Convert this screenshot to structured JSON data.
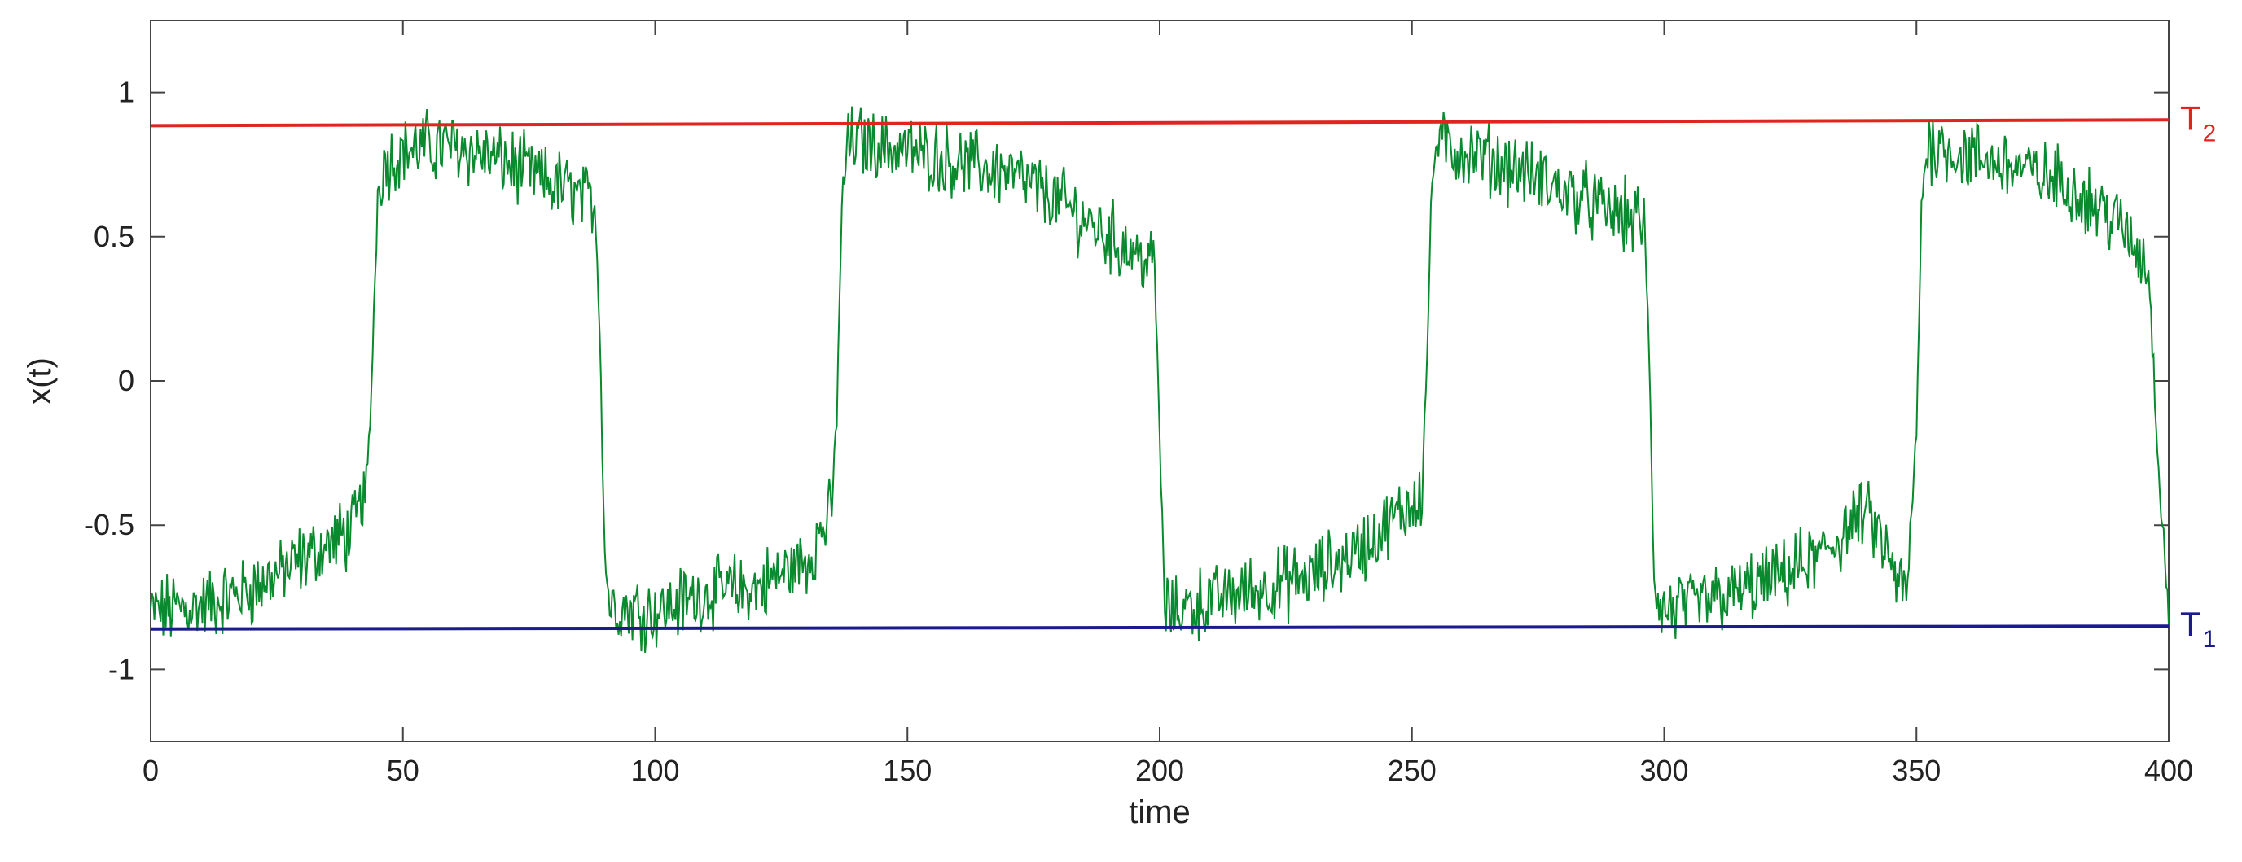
{
  "chart_data": {
    "type": "line",
    "xlabel": "time",
    "ylabel": "x(t)",
    "xlim": [
      0,
      400
    ],
    "ylim": [
      -1.25,
      1.25
    ],
    "xticks": [
      0,
      50,
      100,
      150,
      200,
      250,
      300,
      350,
      400
    ],
    "yticks": [
      1,
      0.5,
      0,
      -0.5,
      -1
    ],
    "ytick_labels": [
      "1",
      "0.5",
      "0",
      "-0.5",
      "-1"
    ],
    "grid": false,
    "series": [
      {
        "color": "#0a8a2e",
        "x": [
          0,
          10,
          20,
          30,
          40,
          43,
          44,
          45,
          46,
          50,
          60,
          70,
          80,
          88,
          89,
          90,
          91,
          100,
          110,
          120,
          130,
          135,
          136,
          137,
          138,
          140,
          150,
          160,
          170,
          180,
          190,
          199,
          200,
          201,
          202,
          210,
          220,
          230,
          240,
          250,
          252,
          253,
          254,
          255,
          260,
          270,
          280,
          290,
          296,
          297,
          298,
          299,
          310,
          320,
          330,
          340,
          348,
          350,
          351,
          352,
          353,
          360,
          370,
          380,
          390,
          396,
          398,
          400
        ],
        "y": [
          -0.8,
          -0.78,
          -0.72,
          -0.62,
          -0.52,
          -0.35,
          0.1,
          0.65,
          0.75,
          0.8,
          0.82,
          0.76,
          0.68,
          0.62,
          0.2,
          -0.6,
          -0.78,
          -0.8,
          -0.74,
          -0.72,
          -0.62,
          -0.45,
          -0.1,
          0.6,
          0.82,
          0.83,
          0.8,
          0.76,
          0.72,
          0.62,
          0.5,
          0.4,
          -0.2,
          -0.78,
          -0.8,
          -0.76,
          -0.72,
          -0.68,
          -0.58,
          -0.42,
          -0.38,
          0.1,
          0.7,
          0.82,
          0.8,
          0.74,
          0.66,
          0.58,
          0.55,
          0.1,
          -0.7,
          -0.8,
          -0.76,
          -0.7,
          -0.62,
          -0.45,
          -0.75,
          -0.2,
          0.6,
          0.8,
          0.82,
          0.78,
          0.74,
          0.68,
          0.55,
          0.4,
          -0.3,
          -0.8
        ]
      },
      {
        "name": "T2",
        "color": "#e0241f",
        "x": [
          0,
          400
        ],
        "y": [
          0.885,
          0.905
        ]
      },
      {
        "name": "T1",
        "color": "#1b1b8f",
        "x": [
          0,
          400
        ],
        "y": [
          -0.86,
          -0.85
        ]
      }
    ],
    "annotations": [
      {
        "text": "T",
        "sub": "2",
        "color": "#e0241f"
      },
      {
        "text": "T",
        "sub": "1",
        "color": "#1b1b8f"
      }
    ]
  }
}
